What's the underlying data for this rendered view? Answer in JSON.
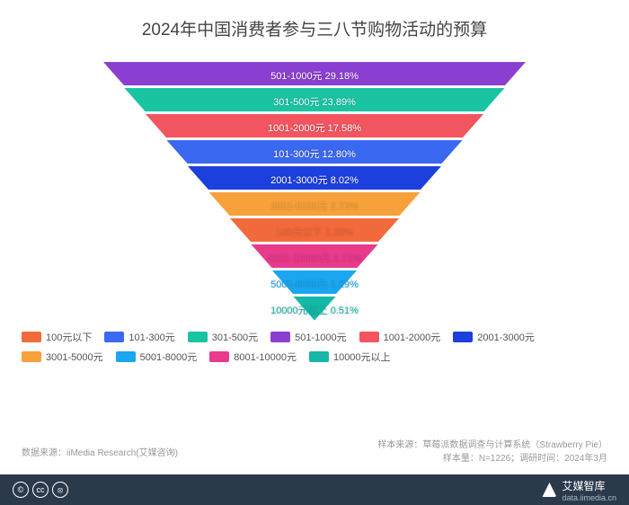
{
  "title": {
    "text": "2024年中国消费者参与三八节购物活动的预算",
    "fontsize": 19,
    "color": "#444444"
  },
  "funnel": {
    "type": "funnel",
    "topWidth": 470,
    "sliceHeight": 26,
    "gap": 3,
    "label_fontsize": 11,
    "slices": [
      {
        "name": "501-1000元",
        "pct": "29.18%",
        "color": "#8b3fd1"
      },
      {
        "name": "301-500元",
        "pct": "23.89%",
        "color": "#1ac4a3"
      },
      {
        "name": "1001-2000元",
        "pct": "17.58%",
        "color": "#f2555f"
      },
      {
        "name": "101-300元",
        "pct": "12.80%",
        "color": "#3b68f0"
      },
      {
        "name": "2001-3000元",
        "pct": "8.02%",
        "color": "#1d3fde"
      },
      {
        "name": "3001-5000元",
        "pct": "2.73%",
        "color": "#f7a13b"
      },
      {
        "name": "100元以下",
        "pct": "2.39%",
        "color": "#f26a3b"
      },
      {
        "name": "8001-10000元",
        "pct": "1.71%",
        "color": "#e83b8c"
      },
      {
        "name": "5001-8000元",
        "pct": "1.19%",
        "color": "#1aa6f0"
      },
      {
        "name": "10000元以上",
        "pct": "0.51%",
        "color": "#15b8a6"
      }
    ]
  },
  "legend": {
    "order": [
      "100元以下",
      "101-300元",
      "301-500元",
      "501-1000元",
      "1001-2000元",
      "2001-3000元",
      "3001-5000元",
      "5001-8000元",
      "8001-10000元",
      "10000元以上"
    ],
    "colors": {
      "100元以下": "#f26a3b",
      "101-300元": "#3b68f0",
      "301-500元": "#1ac4a3",
      "501-1000元": "#8b3fd1",
      "1001-2000元": "#f2555f",
      "2001-3000元": "#1d3fde",
      "3001-5000元": "#f7a13b",
      "5001-8000元": "#1aa6f0",
      "8001-10000元": "#e83b8c",
      "10000元以上": "#15b8a6"
    },
    "fontsize": 11
  },
  "source_left": "数据来源：iiMedia Research(艾媒咨询)",
  "source_right_line1": "样本来源：草莓派数据调查与计算系统（Strawberry Pie）",
  "source_right_line2": "样本量：N=1226；调研时间：2024年3月",
  "brand": {
    "name": "艾媒智库",
    "url": "data.iimedia.cn"
  },
  "cc_icons": [
    "©",
    "cc",
    "⦻"
  ]
}
